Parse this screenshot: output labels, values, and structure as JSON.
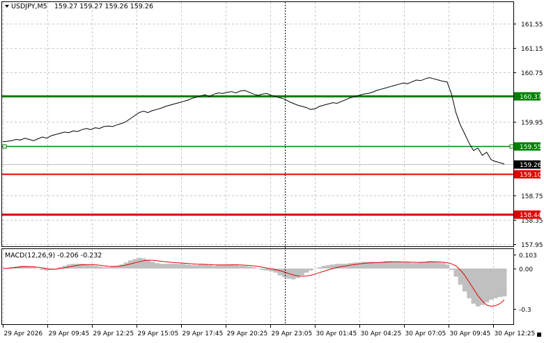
{
  "chart_info": {
    "symbol_label": "USDJPY,M5",
    "ohlc": "159.27 159.27 159.26 159.26",
    "dropdown_icon": "triangle-down-icon"
  },
  "macd_info": {
    "label": "MACD(12,26,9) -0.206 -0.232"
  },
  "colors": {
    "background": "#ffffff",
    "grid": "#c8c8c8",
    "price_line": "#000000",
    "support_resistance_green": "#008000",
    "support_resistance_red": "#e00000",
    "macd_hist": "#c0c0c0",
    "macd_signal": "#e00000",
    "axis_text": "#000000",
    "current_price_bg": "#000000",
    "current_price_text": "#ffffff"
  },
  "chart_data": [
    {
      "type": "line",
      "title": "USDJPY,M5",
      "y_ticks": [
        "161.55",
        "161.15",
        "160.75",
        "159.95",
        "158.75",
        "158.35",
        "157.95"
      ],
      "ylim": [
        157.9,
        161.9
      ],
      "x_ticks": [
        "29 Apr 2026",
        "29 Apr 09:45",
        "29 Apr 12:25",
        "29 Apr 15:05",
        "29 Apr 17:45",
        "29 Apr 20:25",
        "29 Apr 23:05",
        "30 Apr 01:45",
        "30 Apr 04:25",
        "30 Apr 07:05",
        "30 Apr 09:45",
        "30 Apr 12:25"
      ],
      "levels": [
        {
          "label": "160.37",
          "value": 160.37,
          "color": "#008000",
          "style": "thick"
        },
        {
          "label": "159.55",
          "value": 159.55,
          "color": "#008000",
          "style": "thin"
        },
        {
          "label": "159.10",
          "value": 159.1,
          "color": "#e00000",
          "style": "medium"
        },
        {
          "label": "158.44",
          "value": 158.44,
          "color": "#e00000",
          "style": "thick"
        }
      ],
      "current_price": {
        "label": "159.26",
        "value": 159.26
      },
      "series": [
        {
          "values": [
            159.62,
            159.63,
            159.64,
            159.66,
            159.65,
            159.68,
            159.66,
            159.64,
            159.67,
            159.7,
            159.68,
            159.72,
            159.74,
            159.76,
            159.78,
            159.77,
            159.8,
            159.79,
            159.82,
            159.84,
            159.82,
            159.85,
            159.84,
            159.87,
            159.88,
            159.87,
            159.9,
            159.92,
            159.95,
            160.0,
            160.05,
            160.1,
            160.12,
            160.1,
            160.13,
            160.15,
            160.17,
            160.2,
            160.22,
            160.24,
            160.26,
            160.28,
            160.3,
            160.33,
            160.35,
            160.37,
            160.39,
            160.36,
            160.4,
            160.42,
            160.41,
            160.43,
            160.44,
            160.42,
            160.45,
            160.46,
            160.43,
            160.4,
            160.38,
            160.4,
            160.41,
            160.38,
            160.36,
            160.34,
            160.32,
            160.28,
            160.25,
            160.22,
            160.2,
            160.18,
            160.15,
            160.16,
            160.2,
            160.22,
            160.24,
            160.26,
            160.25,
            160.28,
            160.31,
            160.34,
            160.36,
            160.38,
            160.4,
            160.41,
            160.43,
            160.46,
            160.48,
            160.5,
            160.52,
            160.54,
            160.56,
            160.58,
            160.57,
            160.6,
            160.63,
            160.62,
            160.65,
            160.67,
            160.65,
            160.63,
            160.61,
            160.6,
            160.4,
            160.1,
            159.9,
            159.75,
            159.6,
            159.48,
            159.52,
            159.4,
            159.45,
            159.33,
            159.3,
            159.28,
            159.26
          ]
        }
      ]
    },
    {
      "type": "bar",
      "title": "MACD(12,26,9) -0.206 -0.232",
      "y_ticks": [
        "0.103",
        "0.00",
        "-0.3"
      ],
      "ylim": [
        -0.33,
        0.12
      ],
      "series": [
        {
          "name": "MACD",
          "values": [
            0.0,
            0.005,
            0.01,
            0.015,
            0.02,
            0.02,
            0.015,
            0.01,
            0.0,
            -0.01,
            -0.015,
            -0.01,
            0.0,
            0.01,
            0.02,
            0.03,
            0.035,
            0.035,
            0.035,
            0.03,
            0.025,
            0.02,
            0.015,
            0.01,
            0.01,
            0.015,
            0.02,
            0.03,
            0.045,
            0.06,
            0.07,
            0.08,
            0.075,
            0.065,
            0.05,
            0.04,
            0.035,
            0.035,
            0.035,
            0.035,
            0.035,
            0.035,
            0.03,
            0.025,
            0.025,
            0.03,
            0.03,
            0.025,
            0.02,
            0.025,
            0.025,
            0.03,
            0.03,
            0.025,
            0.02,
            0.02,
            0.015,
            0.01,
            0.0,
            -0.01,
            -0.015,
            -0.02,
            -0.03,
            -0.05,
            -0.065,
            -0.075,
            -0.08,
            -0.07,
            -0.05,
            -0.03,
            -0.015,
            0.0,
            0.01,
            0.02,
            0.025,
            0.03,
            0.035,
            0.035,
            0.035,
            0.04,
            0.045,
            0.045,
            0.05,
            0.05,
            0.05,
            0.045,
            0.05,
            0.055,
            0.055,
            0.05,
            0.05,
            0.045,
            0.045,
            0.04,
            0.04,
            0.045,
            0.05,
            0.055,
            0.05,
            0.045,
            0.04,
            0.03,
            -0.01,
            -0.06,
            -0.12,
            -0.17,
            -0.22,
            -0.26,
            -0.28,
            -0.27,
            -0.25,
            -0.23,
            -0.22,
            -0.21,
            -0.206
          ]
        },
        {
          "name": "Signal",
          "values": [
            0.0,
            0.002,
            0.005,
            0.008,
            0.012,
            0.015,
            0.015,
            0.013,
            0.01,
            0.005,
            0.0,
            -0.005,
            -0.005,
            0.0,
            0.005,
            0.012,
            0.018,
            0.024,
            0.028,
            0.03,
            0.03,
            0.028,
            0.025,
            0.02,
            0.017,
            0.016,
            0.017,
            0.02,
            0.026,
            0.034,
            0.042,
            0.05,
            0.058,
            0.062,
            0.062,
            0.058,
            0.054,
            0.05,
            0.047,
            0.044,
            0.042,
            0.04,
            0.038,
            0.035,
            0.033,
            0.032,
            0.031,
            0.03,
            0.028,
            0.027,
            0.027,
            0.027,
            0.028,
            0.028,
            0.027,
            0.025,
            0.023,
            0.02,
            0.016,
            0.01,
            0.004,
            -0.002,
            -0.008,
            -0.016,
            -0.026,
            -0.037,
            -0.047,
            -0.054,
            -0.057,
            -0.055,
            -0.05,
            -0.04,
            -0.03,
            -0.02,
            -0.01,
            0.0,
            0.008,
            0.015,
            0.02,
            0.025,
            0.03,
            0.034,
            0.038,
            0.041,
            0.043,
            0.044,
            0.045,
            0.047,
            0.049,
            0.05,
            0.05,
            0.049,
            0.048,
            0.047,
            0.046,
            0.046,
            0.047,
            0.049,
            0.05,
            0.049,
            0.047,
            0.043,
            0.035,
            0.02,
            -0.01,
            -0.05,
            -0.1,
            -0.15,
            -0.2,
            -0.24,
            -0.27,
            -0.28,
            -0.275,
            -0.26,
            -0.232
          ]
        }
      ]
    }
  ]
}
